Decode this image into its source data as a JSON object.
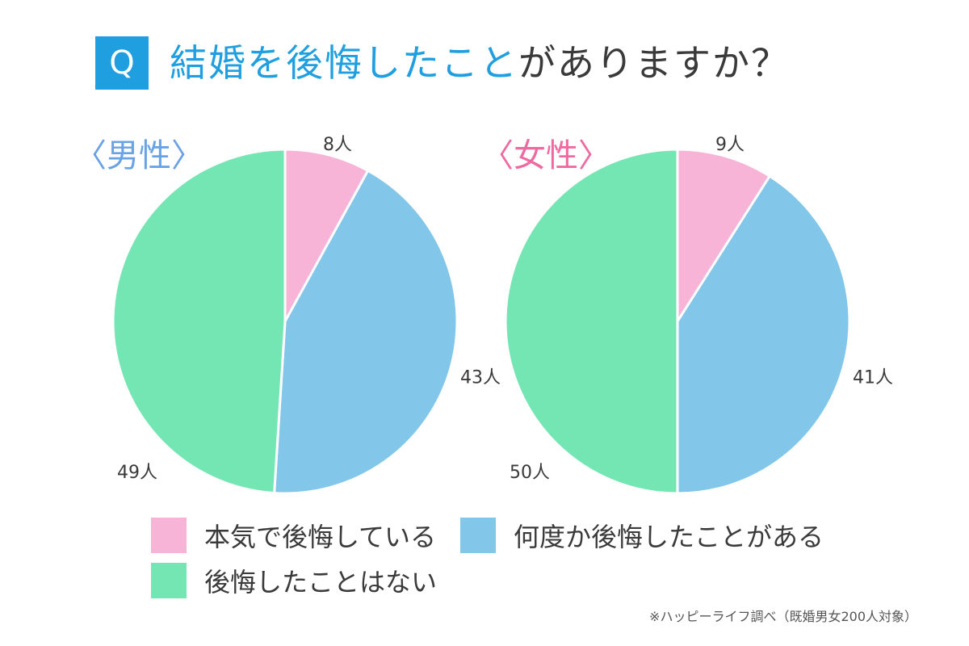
{
  "header": {
    "badge": "Q",
    "title_highlight": "結婚を後悔したこと",
    "title_rest": "がありますか？"
  },
  "colors": {
    "accent": "#1f9fe0",
    "serious": "#f8b4d6",
    "several": "#82c6ea",
    "never": "#74e6b3",
    "male_title": "#6aa2e6",
    "female_title": "#f06aa2"
  },
  "chart_data": [
    {
      "type": "pie",
      "title": "〈男性〉",
      "categories": [
        "本気で後悔している",
        "何度か後悔したことがある",
        "後悔したことはない"
      ],
      "values": [
        8,
        43,
        49
      ],
      "labels": [
        "8人",
        "43人",
        "49人"
      ]
    },
    {
      "type": "pie",
      "title": "〈女性〉",
      "categories": [
        "本気で後悔している",
        "何度か後悔したことがある",
        "後悔したことはない"
      ],
      "values": [
        9,
        41,
        50
      ],
      "labels": [
        "9人",
        "41人",
        "50人"
      ]
    }
  ],
  "legend": {
    "serious": "本気で後悔している",
    "several": "何度か後悔したことがある",
    "never": "後悔したことはない"
  },
  "source": "※ハッピーライフ調べ（既婚男女200人対象）"
}
